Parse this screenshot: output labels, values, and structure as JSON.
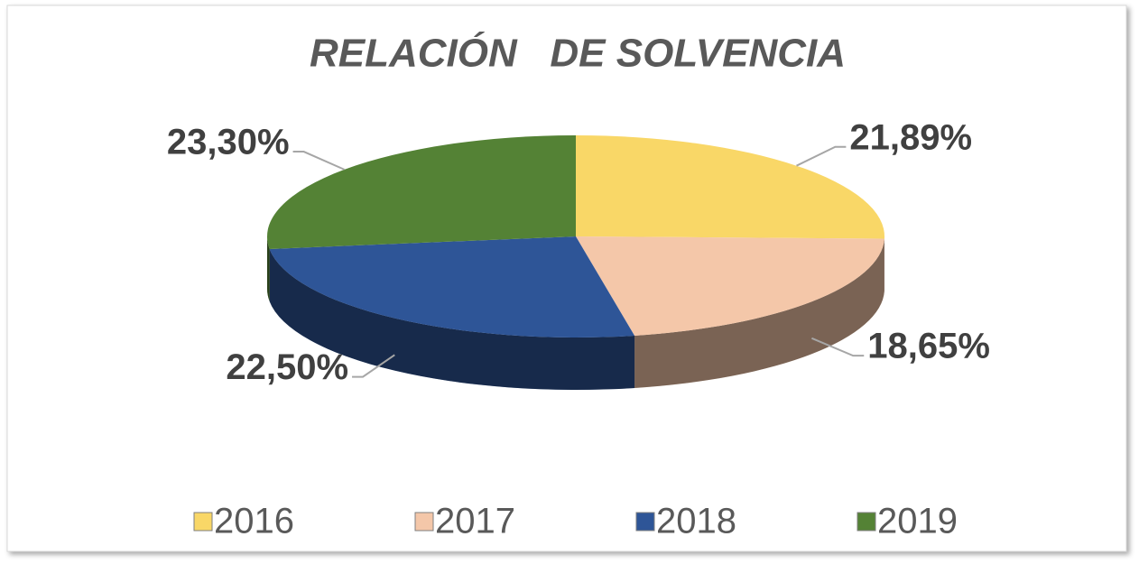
{
  "chart_data": {
    "type": "pie3d",
    "title": "RELACIÓN   DE SOLVENCIA",
    "categories": [
      "2016",
      "2017",
      "2018",
      "2019"
    ],
    "values": [
      21.89,
      18.65,
      22.5,
      23.3
    ],
    "value_labels": [
      "21,89%",
      "18,65%",
      "22,50%",
      "23,30%"
    ],
    "colors": [
      "#f9d767",
      "#f4c7a9",
      "#2e5597",
      "#548235"
    ],
    "legend": "bottom"
  }
}
